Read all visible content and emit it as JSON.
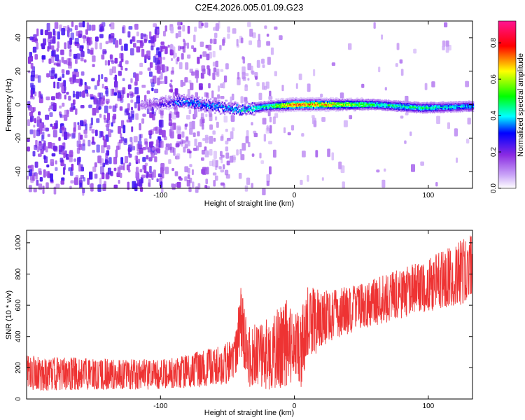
{
  "title": "C2E4.2026.005.01.09.G23",
  "chart_data": [
    {
      "type": "heatmap",
      "xlabel": "Height of straight line (km)",
      "ylabel": "Frequency (Hz)",
      "xlim": [
        -200,
        133
      ],
      "ylim": [
        -50,
        50
      ],
      "x_ticks": [
        -100,
        0,
        100
      ],
      "y_ticks": [
        -40,
        -20,
        0,
        20,
        40
      ],
      "colorbar": {
        "label": "Normalized spectral amplitude",
        "range": [
          0,
          0.92
        ],
        "ticks": [
          0.0,
          0.2,
          0.4,
          0.6,
          0.8
        ],
        "colormap": "rainbow",
        "colors": [
          "#ffffff",
          "#8a2be2",
          "#0000ff",
          "#00ffff",
          "#00ff00",
          "#ffff00",
          "#ff0000",
          "#ff1493"
        ]
      },
      "ridge": {
        "description_points": [
          {
            "x": -110,
            "y": 0,
            "amp": 0.15
          },
          {
            "x": -85,
            "y": 2,
            "amp": 0.4
          },
          {
            "x": -60,
            "y": -1,
            "amp": 0.4
          },
          {
            "x": -40,
            "y": -3,
            "amp": 0.45
          },
          {
            "x": -20,
            "y": -1,
            "amp": 0.5
          },
          {
            "x": 0,
            "y": 0,
            "amp": 0.85
          },
          {
            "x": 20,
            "y": 0,
            "amp": 0.75
          },
          {
            "x": 60,
            "y": 0,
            "amp": 0.5
          },
          {
            "x": 95,
            "y": -2,
            "amp": 0.5
          },
          {
            "x": 133,
            "y": -1,
            "amp": 0.4
          }
        ]
      }
    },
    {
      "type": "line",
      "xlabel": "Height of straight line (km)",
      "ylabel": "SNR (10 * v/v)",
      "xlim": [
        -200,
        133
      ],
      "ylim": [
        0,
        1080
      ],
      "x_ticks": [
        -100,
        0,
        100
      ],
      "y_ticks": [
        0,
        200,
        400,
        600,
        800,
        1000
      ],
      "color": "#ee3333",
      "envelope": [
        {
          "x": -200,
          "low": 50,
          "high": 280
        },
        {
          "x": -150,
          "low": 60,
          "high": 260
        },
        {
          "x": -100,
          "low": 60,
          "high": 250
        },
        {
          "x": -60,
          "low": 80,
          "high": 330
        },
        {
          "x": -45,
          "low": 90,
          "high": 380
        },
        {
          "x": -40,
          "low": 300,
          "high": 740
        },
        {
          "x": -35,
          "low": 80,
          "high": 460
        },
        {
          "x": -20,
          "low": 60,
          "high": 520
        },
        {
          "x": -5,
          "low": 50,
          "high": 640
        },
        {
          "x": 0,
          "low": 150,
          "high": 560
        },
        {
          "x": 5,
          "low": 60,
          "high": 560
        },
        {
          "x": 10,
          "low": 250,
          "high": 720
        },
        {
          "x": 30,
          "low": 380,
          "high": 700
        },
        {
          "x": 60,
          "low": 470,
          "high": 770
        },
        {
          "x": 100,
          "low": 560,
          "high": 900
        },
        {
          "x": 133,
          "low": 620,
          "high": 1060
        }
      ]
    }
  ]
}
